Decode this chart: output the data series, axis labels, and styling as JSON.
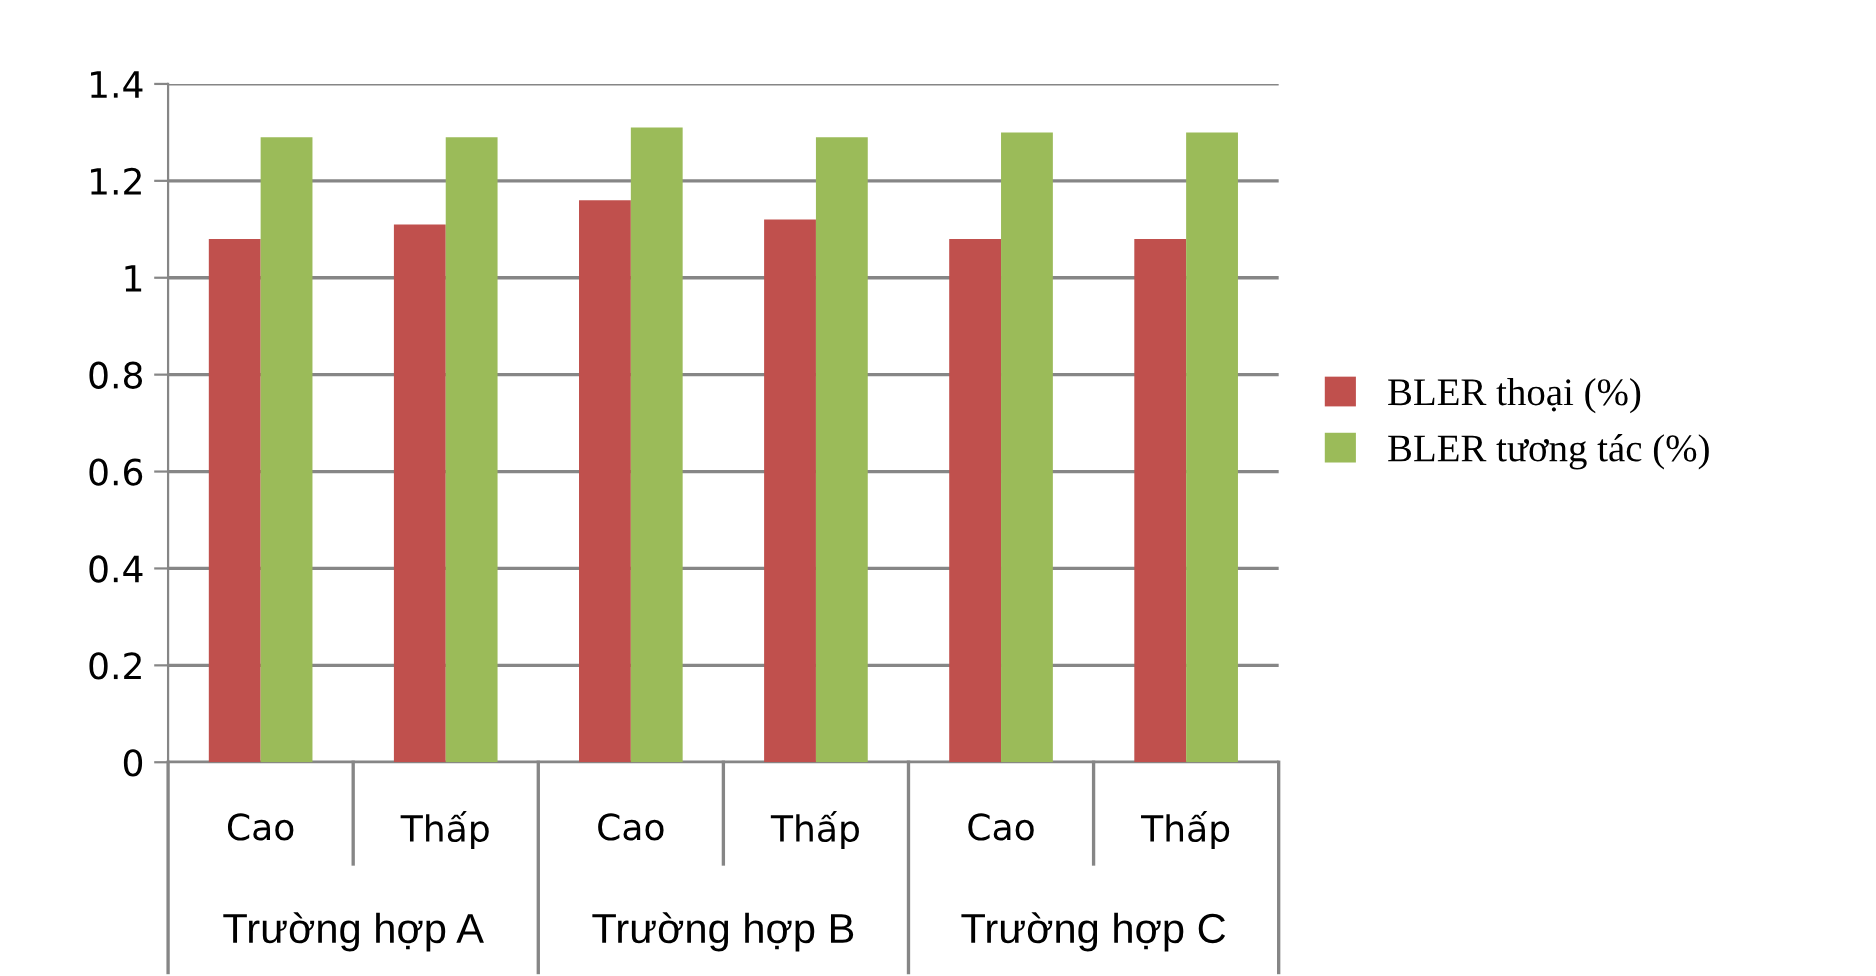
{
  "chart_data": {
    "type": "bar",
    "categories": [
      "Cao",
      "Thấp",
      "Cao",
      "Thấp",
      "Cao",
      "Thấp"
    ],
    "series": [
      {
        "name": "BLER thoại (%)",
        "color": "#c0504d",
        "values": [
          1.08,
          1.11,
          1.16,
          1.12,
          1.08,
          1.08
        ]
      },
      {
        "name": "BLER tương tác (%)",
        "color": "#9bbb59",
        "values": [
          1.29,
          1.29,
          1.31,
          1.29,
          1.3,
          1.3
        ]
      }
    ],
    "annotations": [
      "Trường hợp A",
      "Trường hợp B",
      "Trường hợp C"
    ],
    "ylim": [
      0,
      1.4
    ],
    "yticks": [
      0,
      0.2,
      0.4,
      0.6,
      0.8,
      1,
      1.2,
      1.4
    ],
    "grid": "y",
    "legend": "right"
  }
}
